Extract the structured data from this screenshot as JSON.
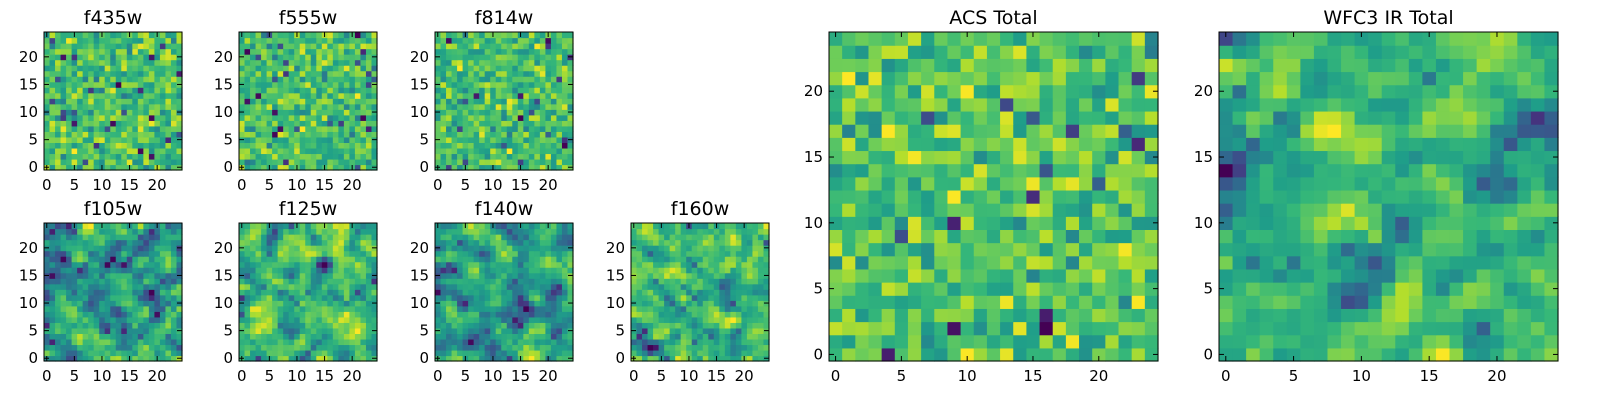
{
  "chart_data": [
    {
      "type": "heatmap",
      "title": "f435w",
      "x_ticks": [
        0,
        5,
        10,
        15,
        20
      ],
      "y_ticks": [
        0,
        5,
        10,
        15,
        20
      ],
      "xlim": [
        -0.5,
        24.5
      ],
      "ylim": [
        -0.5,
        24.5
      ],
      "grid": "25x25 noise map",
      "colormap": "viridis"
    },
    {
      "type": "heatmap",
      "title": "f555w",
      "x_ticks": [
        0,
        5,
        10,
        15,
        20
      ],
      "y_ticks": [
        0,
        5,
        10,
        15,
        20
      ],
      "xlim": [
        -0.5,
        24.5
      ],
      "ylim": [
        -0.5,
        24.5
      ],
      "grid": "25x25 noise map",
      "colormap": "viridis"
    },
    {
      "type": "heatmap",
      "title": "f814w",
      "x_ticks": [
        0,
        5,
        10,
        15,
        20
      ],
      "y_ticks": [
        0,
        5,
        10,
        15,
        20
      ],
      "xlim": [
        -0.5,
        24.5
      ],
      "ylim": [
        -0.5,
        24.5
      ],
      "grid": "25x25 noise map",
      "colormap": "viridis"
    },
    {
      "type": "heatmap",
      "title": "f105w",
      "x_ticks": [
        0,
        5,
        10,
        15,
        20
      ],
      "y_ticks": [
        0,
        5,
        10,
        15,
        20
      ],
      "xlim": [
        -0.5,
        24.5
      ],
      "ylim": [
        -0.5,
        24.5
      ],
      "grid": "25x25 noise map",
      "colormap": "viridis"
    },
    {
      "type": "heatmap",
      "title": "f125w",
      "x_ticks": [
        0,
        5,
        10,
        15,
        20
      ],
      "y_ticks": [
        0,
        5,
        10,
        15,
        20
      ],
      "xlim": [
        -0.5,
        24.5
      ],
      "ylim": [
        -0.5,
        24.5
      ],
      "grid": "25x25 noise map",
      "colormap": "viridis"
    },
    {
      "type": "heatmap",
      "title": "f140w",
      "x_ticks": [
        0,
        5,
        10,
        15,
        20
      ],
      "y_ticks": [
        0,
        5,
        10,
        15,
        20
      ],
      "xlim": [
        -0.5,
        24.5
      ],
      "ylim": [
        -0.5,
        24.5
      ],
      "grid": "25x25 noise map",
      "colormap": "viridis"
    },
    {
      "type": "heatmap",
      "title": "f160w",
      "x_ticks": [
        0,
        5,
        10,
        15,
        20
      ],
      "y_ticks": [
        0,
        5,
        10,
        15,
        20
      ],
      "xlim": [
        -0.5,
        24.5
      ],
      "ylim": [
        -0.5,
        24.5
      ],
      "grid": "25x25 noise map",
      "colormap": "viridis"
    },
    {
      "type": "heatmap",
      "title": "ACS Total",
      "x_ticks": [
        0,
        5,
        10,
        15,
        20
      ],
      "y_ticks": [
        0,
        5,
        10,
        15,
        20
      ],
      "xlim": [
        -0.5,
        24.5
      ],
      "ylim": [
        -0.5,
        24.5
      ],
      "grid": "25x25 noise map",
      "colormap": "viridis"
    },
    {
      "type": "heatmap",
      "title": "WFC3 IR Total",
      "x_ticks": [
        0,
        5,
        10,
        15,
        20
      ],
      "y_ticks": [
        0,
        5,
        10,
        15,
        20
      ],
      "xlim": [
        -0.5,
        24.5
      ],
      "ylim": [
        -0.5,
        24.5
      ],
      "grid": "25x25 noise map",
      "colormap": "viridis"
    }
  ]
}
